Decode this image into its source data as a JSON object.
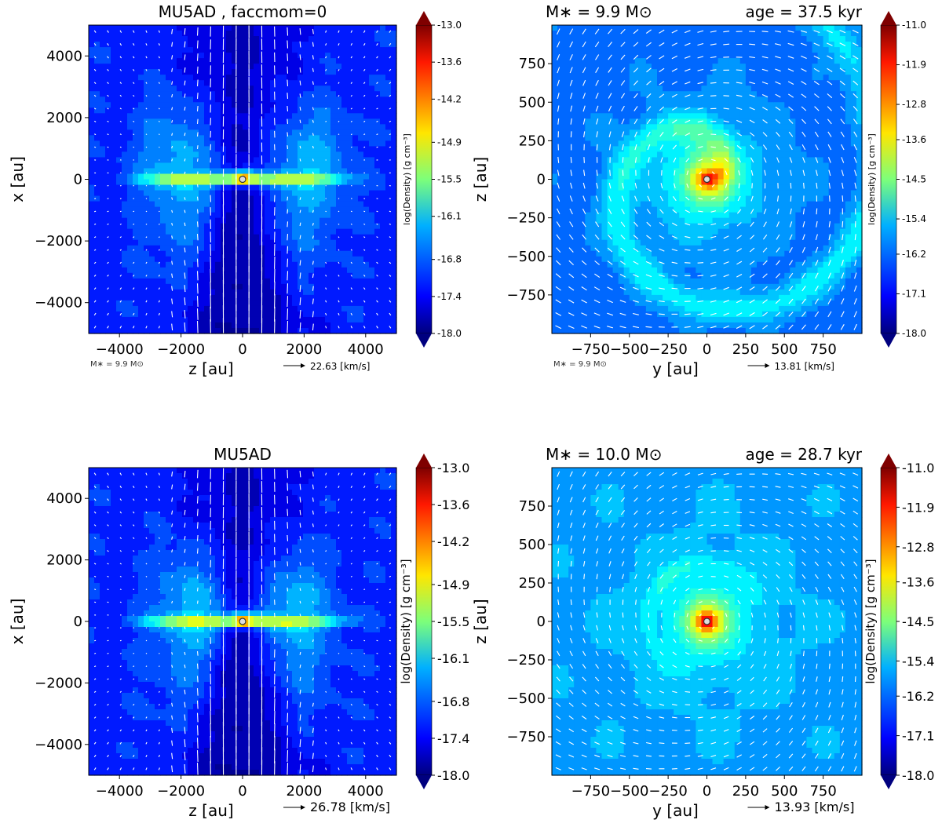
{
  "chart_data": [
    {
      "type": "heatmap",
      "view": "edge-on",
      "title": "MU5AD , faccmom=0",
      "title_right": "",
      "xlabel": "z [au]",
      "ylabel": "x [au]",
      "xlim": [
        -5000,
        5000
      ],
      "ylim": [
        -5000,
        5000
      ],
      "xticks": [
        -4000,
        -2000,
        0,
        2000,
        4000
      ],
      "yticks": [
        -4000,
        -2000,
        0,
        2000,
        4000
      ],
      "x_tick_labels": [
        "−4000",
        "−2000",
        "0",
        "2000",
        "4000"
      ],
      "y_tick_labels": [
        "−4000",
        "−2000",
        "0",
        "2000",
        "4000"
      ],
      "colorbar": {
        "label": "log(Density) [g cm⁻³]",
        "ticks": [
          -13.0,
          -13.6,
          -14.2,
          -14.9,
          -15.5,
          -16.1,
          -16.8,
          -17.4,
          -18.0
        ],
        "tick_labels": [
          "-13.0",
          "-13.6",
          "-14.2",
          "-14.9",
          "-15.5",
          "-16.1",
          "-16.8",
          "-17.4",
          "-18.0"
        ],
        "range": [
          -18.0,
          -13.0
        ],
        "small": true
      },
      "velocity_key": "22.63 [km/s]",
      "mass_note": "M∗ = 9.9 M⊙",
      "small_key": true
    },
    {
      "type": "heatmap",
      "view": "face-on-spiral",
      "title": "M∗ = 9.9 M⊙",
      "title_right": "age = 37.5 kyr",
      "xlabel": "y [au]",
      "ylabel": "z [au]",
      "xlim": [
        -1000,
        1000
      ],
      "ylim": [
        -1000,
        1000
      ],
      "xticks": [
        -750,
        -500,
        -250,
        0,
        250,
        500,
        750
      ],
      "yticks": [
        -750,
        -500,
        -250,
        0,
        250,
        500,
        750
      ],
      "x_tick_labels": [
        "−750",
        "−500",
        "−250",
        "0",
        "250",
        "500",
        "750"
      ],
      "y_tick_labels": [
        "−750",
        "−500",
        "−250",
        "0",
        "250",
        "500",
        "750"
      ],
      "colorbar": {
        "label": "log(Density) [g cm⁻³]",
        "ticks": [
          -11.0,
          -11.9,
          -12.8,
          -13.6,
          -14.5,
          -15.4,
          -16.2,
          -17.1,
          -18.0
        ],
        "tick_labels": [
          "-11.0",
          "-11.9",
          "-12.8",
          "-13.6",
          "-14.5",
          "-15.4",
          "-16.2",
          "-17.1",
          "-18.0"
        ],
        "range": [
          -18.0,
          -11.0
        ],
        "small": true
      },
      "velocity_key": "13.81 [km/s]",
      "mass_note": "M∗ = 9.9 M⊙",
      "small_key": true
    },
    {
      "type": "heatmap",
      "view": "edge-on",
      "title": "MU5AD",
      "title_right": "",
      "xlabel": "z [au]",
      "ylabel": "x [au]",
      "xlim": [
        -5000,
        5000
      ],
      "ylim": [
        -5000,
        5000
      ],
      "xticks": [
        -4000,
        -2000,
        0,
        2000,
        4000
      ],
      "yticks": [
        -4000,
        -2000,
        0,
        2000,
        4000
      ],
      "x_tick_labels": [
        "−4000",
        "−2000",
        "0",
        "2000",
        "4000"
      ],
      "y_tick_labels": [
        "−4000",
        "−2000",
        "0",
        "2000",
        "4000"
      ],
      "colorbar": {
        "label": "log(Density) [g cm⁻³]",
        "ticks": [
          -13.0,
          -13.6,
          -14.2,
          -14.9,
          -15.5,
          -16.1,
          -16.8,
          -17.4,
          -18.0
        ],
        "tick_labels": [
          "-13.0",
          "-13.6",
          "-14.2",
          "-14.9",
          "-15.5",
          "-16.1",
          "-16.8",
          "-17.4",
          "-18.0"
        ],
        "range": [
          -18.0,
          -13.0
        ],
        "small": false
      },
      "velocity_key": "26.78 [km/s]",
      "mass_note": "",
      "small_key": false
    },
    {
      "type": "heatmap",
      "view": "face-on-compact",
      "title": "M∗ = 10.0 M⊙",
      "title_right": "age = 28.7 kyr",
      "xlabel": "y [au]",
      "ylabel": "z [au]",
      "xlim": [
        -1000,
        1000
      ],
      "ylim": [
        -1000,
        1000
      ],
      "xticks": [
        -750,
        -500,
        -250,
        0,
        250,
        500,
        750
      ],
      "yticks": [
        -750,
        -500,
        -250,
        0,
        250,
        500,
        750
      ],
      "x_tick_labels": [
        "−750",
        "−500",
        "−250",
        "0",
        "250",
        "500",
        "750"
      ],
      "y_tick_labels": [
        "−750",
        "−500",
        "−250",
        "0",
        "250",
        "500",
        "750"
      ],
      "colorbar": {
        "label": "log(Density) [g cm⁻³]",
        "ticks": [
          -11.0,
          -11.9,
          -12.8,
          -13.6,
          -14.5,
          -15.4,
          -16.2,
          -17.1,
          -18.0
        ],
        "tick_labels": [
          "-11.0",
          "-11.9",
          "-12.8",
          "-13.6",
          "-14.5",
          "-15.4",
          "-16.2",
          "-17.1",
          "-18.0"
        ],
        "range": [
          -18.0,
          -11.0
        ],
        "small": false
      },
      "velocity_key": "13.93 [km/s]",
      "mass_note": "",
      "small_key": false
    }
  ]
}
